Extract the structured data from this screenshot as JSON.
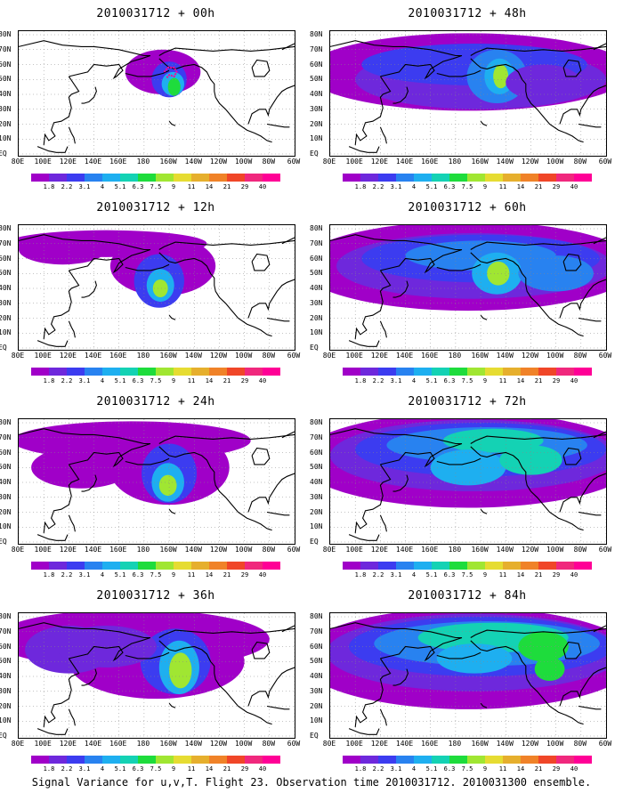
{
  "panels": [
    {
      "title": "2010031712 + 00h",
      "lead": 0
    },
    {
      "title": "2010031712 + 48h",
      "lead": 48
    },
    {
      "title": "2010031712 + 12h",
      "lead": 12
    },
    {
      "title": "2010031712 + 60h",
      "lead": 60
    },
    {
      "title": "2010031712 + 24h",
      "lead": 24
    },
    {
      "title": "2010031712 + 72h",
      "lead": 72
    },
    {
      "title": "2010031712 + 36h",
      "lead": 36
    },
    {
      "title": "2010031712 + 84h",
      "lead": 84
    }
  ],
  "lat_labels": [
    "80N",
    "70N",
    "60N",
    "50N",
    "40N",
    "30N",
    "20N",
    "10N",
    "EQ"
  ],
  "lon_labels": [
    "80E",
    "100E",
    "120E",
    "140E",
    "160E",
    "180",
    "160W",
    "140W",
    "120W",
    "100W",
    "80W",
    "60W"
  ],
  "colorbar": {
    "labels": [
      "1.8",
      "2.2",
      "3.1",
      "4",
      "5.1",
      "6.3",
      "7.5",
      "9",
      "11",
      "14",
      "21",
      "29",
      "40"
    ],
    "colors": [
      "#a000c8",
      "#6e28dc",
      "#3c3cf0",
      "#2882f0",
      "#1eaff0",
      "#14d2b4",
      "#1edc3c",
      "#a0e632",
      "#e6dc32",
      "#e6af2d",
      "#f08228",
      "#f04628",
      "#f0287d",
      "#ff0096"
    ]
  },
  "caption": "Signal Variance for u,v,T. Flight 23. Observation time 2010031712. 2010031300 ensemble."
}
